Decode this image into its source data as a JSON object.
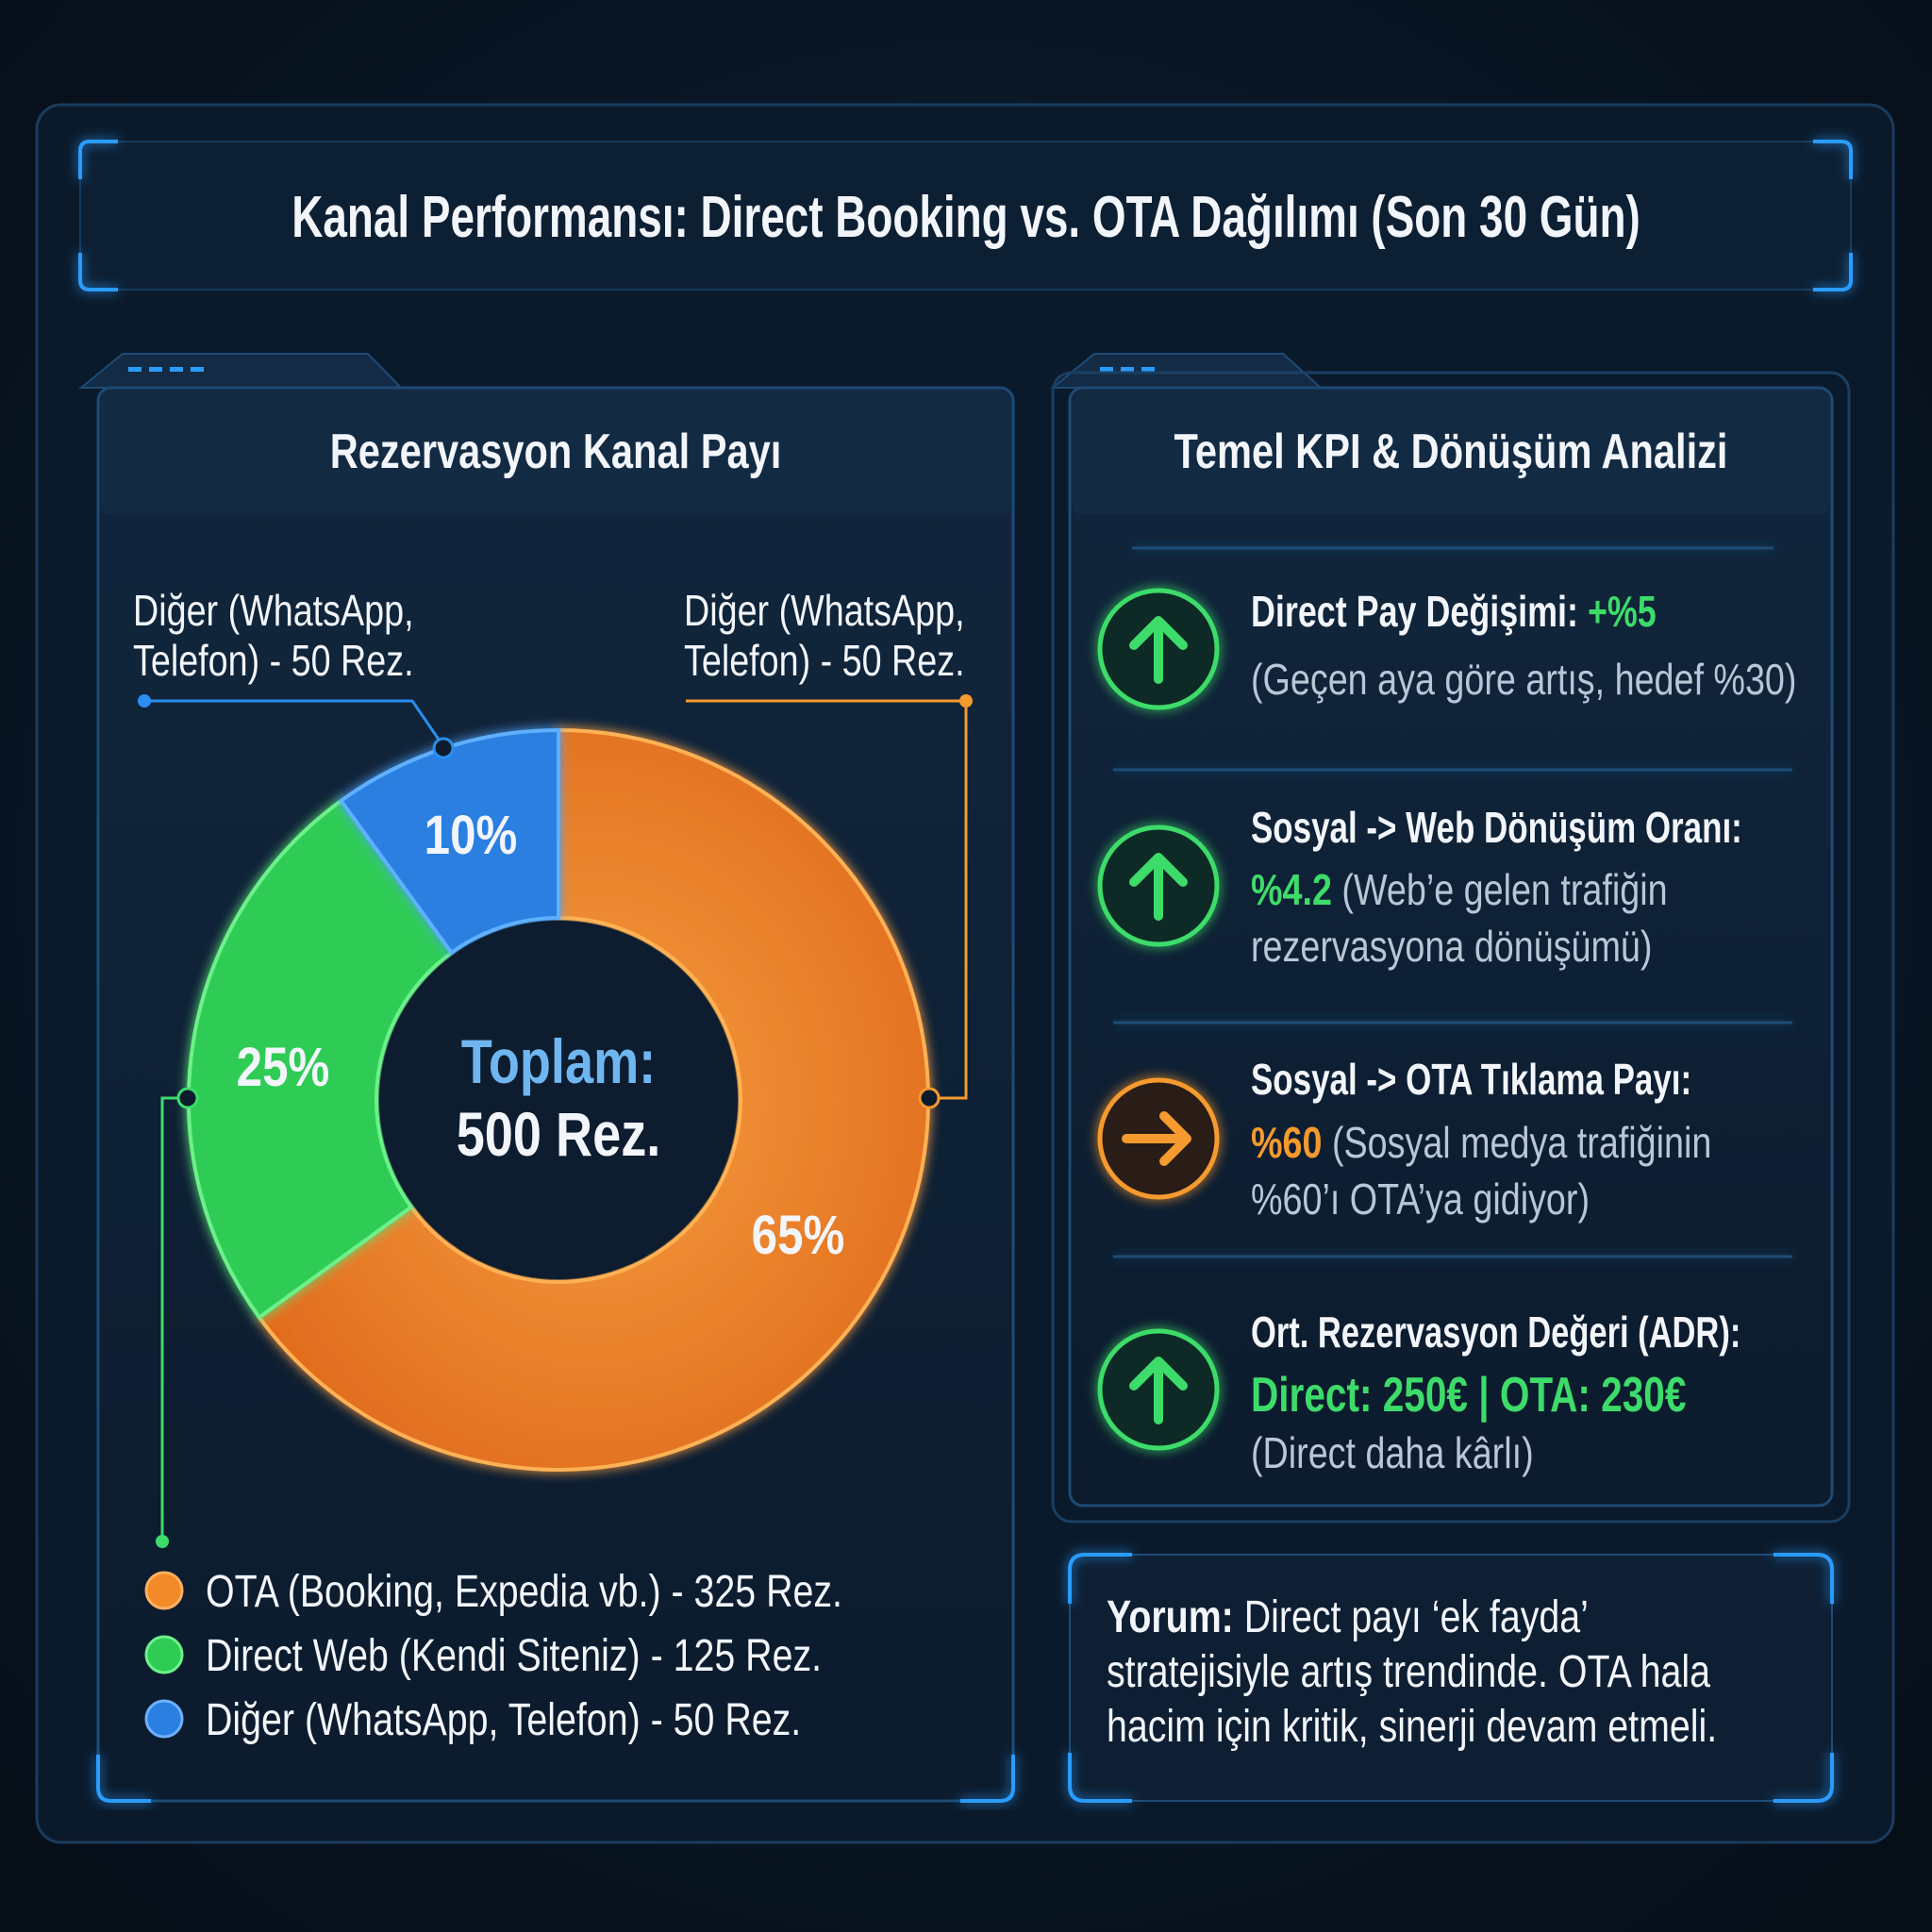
{
  "title": "Kanal Performansı: Direct Booking vs. OTA Dağılımı (Son 30 Gün)",
  "left_panel": {
    "heading": "Rezervasyon Kanal Payı",
    "callout_left": [
      "Diğer (WhatsApp,",
      "Telefon) - 50 Rez."
    ],
    "callout_right": [
      "Diğer (WhatsApp,",
      "Telefon) - 50 Rez."
    ],
    "center_label": "Toplam:",
    "center_value": "500 Rez.",
    "legend": [
      "OTA (Booking, Expedia vb.) - 325 Rez.",
      "Direct Web (Kendi Siteniz) - 125 Rez.",
      "Diğer (WhatsApp, Telefon) - 50 Rez."
    ]
  },
  "chart_data": {
    "type": "pie",
    "subtype": "donut",
    "title": "Rezervasyon Kanal Payı",
    "categories": [
      "OTA (Booking, Expedia vb.)",
      "Direct Web (Kendi Siteniz)",
      "Diğer (WhatsApp, Telefon)"
    ],
    "values": [
      325,
      125,
      50
    ],
    "percent_labels": [
      "65%",
      "25%",
      "10%"
    ],
    "colors": [
      "#f28a2a",
      "#2ecc55",
      "#2a7fe0"
    ],
    "total_label": "Toplam: 500 Rez.",
    "legend_position": "bottom"
  },
  "right_panel": {
    "heading": "Temel KPI & Dönüşüm Analizi",
    "kpis": [
      {
        "icon": "arrow-up-icon",
        "color": "#3ddc6a",
        "title": "Direct Pay Değişimi:",
        "value": "+%5",
        "lines": [
          "(Geçen aya göre artış, hedef %30)"
        ]
      },
      {
        "icon": "arrow-up-icon",
        "color": "#3ddc6a",
        "title": "Sosyal -> Web Dönüşüm Oranı:",
        "value": "%4.2",
        "lines": [
          "(Web’e gelen trafiğin",
          "rezervasyona dönüşümü)"
        ]
      },
      {
        "icon": "arrow-right-icon",
        "color": "#f59a2e",
        "title": "Sosyal -> OTA Tıklama Payı:",
        "value": "%60",
        "lines": [
          "(Sosyal medya trafiğinin",
          "%60’ı OTA’ya gidiyor)"
        ]
      },
      {
        "icon": "arrow-up-icon",
        "color": "#3ddc6a",
        "title": "Ort. Rezervasyon Değeri (ADR):",
        "value": "Direct: 250€ | OTA: 230€",
        "lines": [
          "(Direct daha kârlı)"
        ]
      }
    ]
  },
  "comment": {
    "label": "Yorum:",
    "lines": [
      "Direct payı ‘ek fayda’",
      "stratejisiyle artış trendinde. OTA hala",
      "hacim için kritik, sinerji devam etmeli."
    ]
  }
}
